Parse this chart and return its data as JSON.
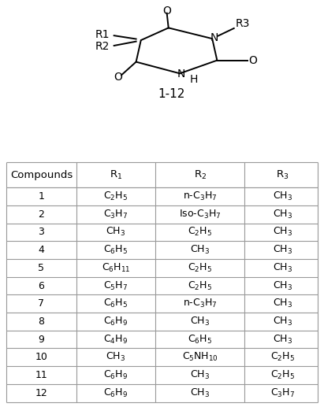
{
  "title": "1-12",
  "headers": [
    "Compounds",
    "R₁",
    "R₂",
    "R₃"
  ],
  "header_labels": [
    "Compounds",
    "R$_1$",
    "R$_2$",
    "R$_3$"
  ],
  "rows": [
    [
      "1",
      "C$_2$H$_5$",
      "n-C$_3$H$_7$",
      "CH$_3$"
    ],
    [
      "2",
      "C$_3$H$_7$",
      "Iso-C$_3$H$_7$",
      "CH$_3$"
    ],
    [
      "3",
      "CH$_3$",
      "C$_2$H$_5$",
      "CH$_3$"
    ],
    [
      "4",
      "C$_6$H$_5$",
      "CH$_3$",
      "CH$_3$"
    ],
    [
      "5",
      "C$_6$H$_{11}$",
      "C$_2$H$_5$",
      "CH$_3$"
    ],
    [
      "6",
      "C$_5$H$_7$",
      "C$_2$H$_5$",
      "CH$_3$"
    ],
    [
      "7",
      "C$_6$H$_5$",
      "n-C$_3$H$_7$",
      "CH$_3$"
    ],
    [
      "8",
      "C$_6$H$_9$",
      "CH$_3$",
      "CH$_3$"
    ],
    [
      "9",
      "C$_4$H$_9$",
      "C$_6$H$_5$",
      "CH$_3$"
    ],
    [
      "10",
      "CH$_3$",
      "C$_5$NH$_{10}$",
      "C$_2$H$_5$"
    ],
    [
      "11",
      "C$_6$H$_9$",
      "CH$_3$",
      "C$_2$H$_5$"
    ],
    [
      "12",
      "C$_6$H$_9$",
      "CH$_3$",
      "C$_3$H$_7$"
    ]
  ],
  "bg_color": "#ffffff",
  "text_color": "#000000",
  "border_color": "#999999"
}
